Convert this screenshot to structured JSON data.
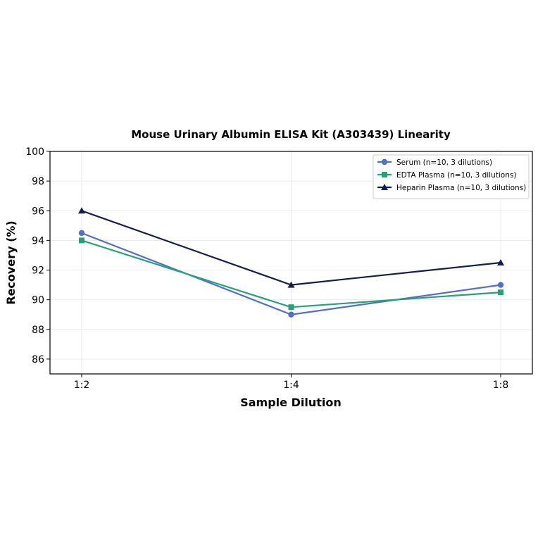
{
  "chart_data": {
    "type": "line",
    "title": "Mouse Urinary Albumin ELISA Kit (A303439) Linearity",
    "xlabel": "Sample Dilution",
    "ylabel": "Recovery (%)",
    "categories": [
      "1:2",
      "1:4",
      "1:8"
    ],
    "ylim": [
      85,
      100
    ],
    "yticks": [
      86,
      88,
      90,
      92,
      94,
      96,
      98,
      100
    ],
    "grid": true,
    "legend_position": "top-right",
    "series": [
      {
        "name": "Serum (n=10, 3 dilutions)",
        "values": [
          94.5,
          89.0,
          91.0
        ],
        "color": "#5470c6",
        "marker": "circle"
      },
      {
        "name": "EDTA Plasma (n=10, 3 dilutions)",
        "values": [
          94.0,
          89.5,
          90.5
        ],
        "color": "#27a07a",
        "marker": "square"
      },
      {
        "name": "Heparin Plasma (n=10, 3 dilutions)",
        "values": [
          96.0,
          91.0,
          92.5
        ],
        "color": "#141e46",
        "marker": "triangle"
      }
    ]
  }
}
